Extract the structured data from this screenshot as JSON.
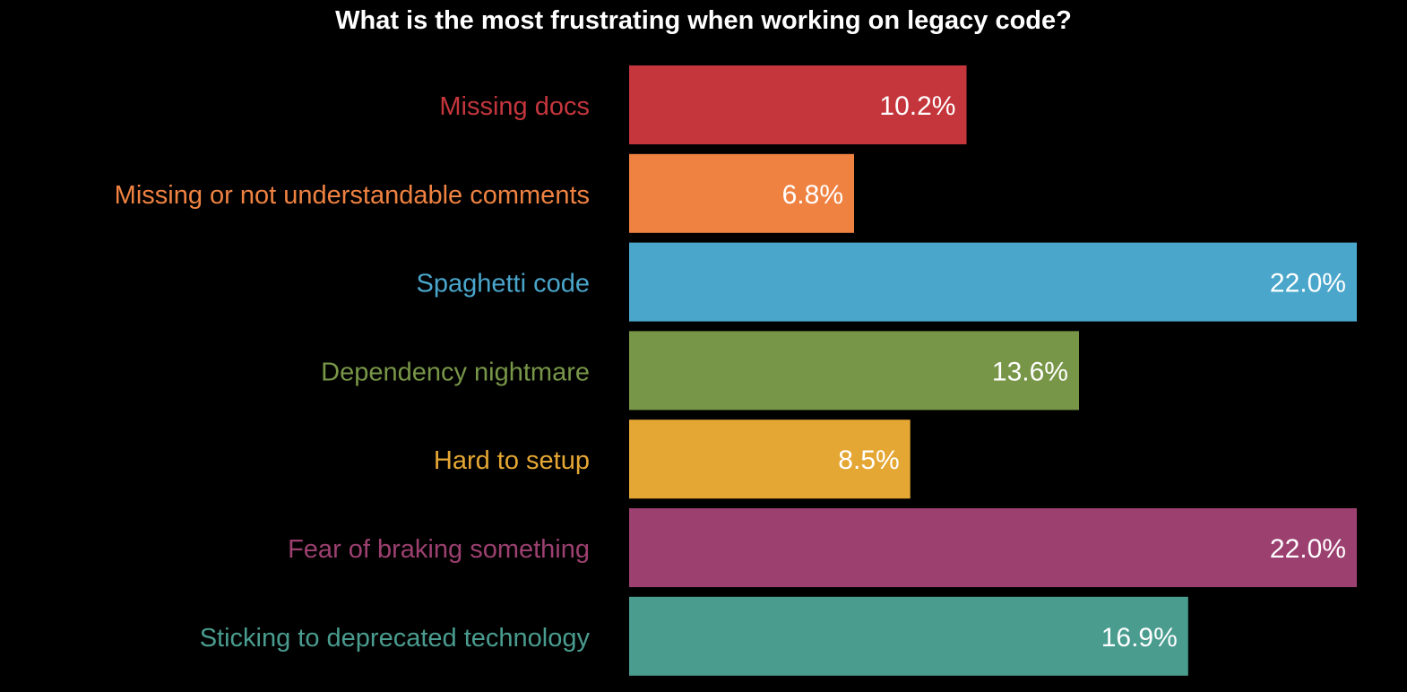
{
  "chart_data": {
    "type": "bar",
    "orientation": "horizontal",
    "title": "What is the most frustrating when working on legacy code?",
    "xlabel": "",
    "ylabel": "",
    "xlim": [
      0,
      22.0
    ],
    "grid": false,
    "legend": "none",
    "categories": [
      "Missing docs",
      "Missing or not understandable comments",
      "Spaghetti code",
      "Dependency nightmare",
      "Hard to setup",
      "Fear of braking something",
      "Sticking to deprecated technology"
    ],
    "values": [
      10.2,
      6.8,
      22.0,
      13.6,
      8.5,
      22.0,
      16.9
    ],
    "data_labels": [
      "10.2%",
      "6.8%",
      "22.0%",
      "13.6%",
      "8.5%",
      "22.0%",
      "16.9%"
    ],
    "colors": [
      "#C4363C",
      "#EF8241",
      "#4AA6CB",
      "#789648",
      "#E5A734",
      "#9C4070",
      "#4A9C8F"
    ]
  },
  "style": {
    "background": "#000000",
    "title_color": "#FFFFFF",
    "data_label_color": "#FFFFFF"
  }
}
